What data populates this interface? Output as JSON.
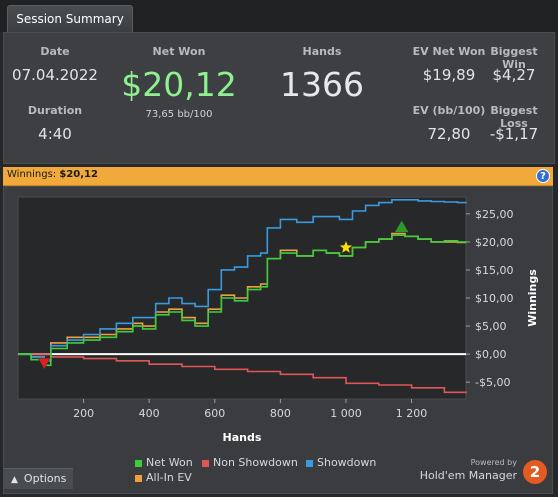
{
  "tab": {
    "title": "Session Summary"
  },
  "summary": {
    "date_label": "Date",
    "date_value": "07.04.2022",
    "duration_label": "Duration",
    "duration_value": "4:40",
    "net_won_label": "Net Won",
    "net_won_value": "$20,12",
    "net_won_sub": "73,65 bb/100",
    "hands_label": "Hands",
    "hands_value": "1366",
    "ev_net_won_label": "EV Net Won",
    "ev_net_won_value": "$19,89",
    "biggest_win_label": "Biggest Win",
    "biggest_win_value": "$4,27",
    "ev_bb100_label": "EV (bb/100)",
    "ev_bb100_value": "72,80",
    "biggest_loss_label": "Biggest Loss",
    "biggest_loss_value": "-$1,17"
  },
  "winnings_bar": {
    "label": "Winnings:",
    "value": "$20,12",
    "help": "?"
  },
  "options": {
    "label": "Options"
  },
  "brand": {
    "powered": "Powered by",
    "name": "Hold'em Manager",
    "logo": "2"
  },
  "colors": {
    "net_won": "#3ccf3c",
    "non_showdown": "#e05555",
    "showdown": "#3a9ae0",
    "allin_ev": "#f0a040",
    "accent_green": "#8ef08e"
  },
  "chart_data": {
    "type": "line",
    "xlabel": "Hands",
    "ylabel": "Winnings",
    "xlim": [
      0,
      1366
    ],
    "ylim": [
      -8,
      28
    ],
    "x_ticks": [
      200,
      400,
      600,
      800,
      1000,
      1200
    ],
    "x_tick_labels": [
      "200",
      "400",
      "600",
      "800",
      "1 000",
      "1 200"
    ],
    "y_ticks": [
      25,
      20,
      15,
      10,
      5,
      0,
      -5
    ],
    "y_tick_labels": [
      "$25,00",
      "$20,00",
      "$15,00",
      "$10,00",
      "$5,00",
      "$0,00",
      "-$5,00"
    ],
    "grid": false,
    "legend_position": "bottom",
    "series": [
      {
        "name": "Net Won",
        "color": "#3ccf3c",
        "x": [
          0,
          40,
          80,
          100,
          150,
          200,
          250,
          300,
          350,
          380,
          420,
          460,
          500,
          540,
          580,
          620,
          660,
          700,
          740,
          760,
          800,
          850,
          900,
          940,
          980,
          1020,
          1060,
          1100,
          1140,
          1180,
          1220,
          1260,
          1300,
          1340,
          1366
        ],
        "y": [
          0,
          -1,
          -2,
          1,
          2,
          2.5,
          3,
          4,
          5,
          4.5,
          7,
          7.5,
          6,
          5,
          7.5,
          10,
          9.5,
          11.5,
          12,
          17,
          18,
          17.5,
          18.5,
          18,
          17.5,
          19,
          20,
          20.5,
          21.2,
          21,
          20.5,
          20,
          20.2,
          20,
          20.12
        ]
      },
      {
        "name": "Non Showdown",
        "color": "#e05555",
        "x": [
          0,
          100,
          200,
          300,
          400,
          500,
          600,
          700,
          800,
          900,
          1000,
          1100,
          1200,
          1300,
          1366
        ],
        "y": [
          0,
          -0.5,
          -0.8,
          -1.2,
          -1.8,
          -2.2,
          -2.7,
          -3.1,
          -3.6,
          -4.2,
          -5.2,
          -5.5,
          -6.0,
          -6.8,
          -7.0
        ]
      },
      {
        "name": "Showdown",
        "color": "#3a9ae0",
        "x": [
          0,
          40,
          80,
          100,
          150,
          200,
          250,
          300,
          350,
          380,
          420,
          460,
          500,
          540,
          580,
          620,
          660,
          700,
          740,
          760,
          800,
          850,
          900,
          940,
          980,
          1020,
          1060,
          1100,
          1140,
          1180,
          1220,
          1260,
          1300,
          1340,
          1366
        ],
        "y": [
          0,
          -0.5,
          -1.2,
          1.5,
          2.5,
          3.5,
          4.5,
          5.5,
          6.5,
          6.5,
          9,
          10,
          9,
          8.5,
          11.5,
          15,
          15.5,
          17.5,
          18,
          22.5,
          24,
          23.5,
          24.5,
          24.5,
          24,
          25.5,
          26.5,
          27,
          27.5,
          27.5,
          27.3,
          27.2,
          27.1,
          27.0,
          27.12
        ]
      },
      {
        "name": "All-In EV",
        "color": "#f0a040",
        "x": [
          0,
          40,
          80,
          100,
          150,
          200,
          250,
          300,
          350,
          380,
          420,
          460,
          500,
          540,
          580,
          620,
          660,
          700,
          740,
          760,
          800,
          850,
          900,
          940,
          980,
          1020,
          1060,
          1100,
          1140,
          1180,
          1220,
          1260,
          1300,
          1340,
          1366
        ],
        "y": [
          0,
          -0.5,
          -1,
          2,
          3,
          3,
          3.5,
          4.5,
          5.5,
          5,
          7.5,
          8,
          6.5,
          5.5,
          8,
          10.5,
          10,
          12,
          12.5,
          17,
          18.5,
          17.5,
          18.5,
          18,
          17.5,
          19,
          20,
          20.5,
          21.5,
          21,
          20.5,
          20,
          20,
          19.9,
          19.89
        ]
      }
    ],
    "markers": [
      {
        "name": "Biggest Loss",
        "shape": "triangle-down",
        "color": "#e02020",
        "x": 80,
        "y": -1.6
      },
      {
        "name": "All-In",
        "shape": "star",
        "color": "#ffe000",
        "x": 1000,
        "y": 19
      },
      {
        "name": "Biggest Win",
        "shape": "triangle-up",
        "color": "#2a9a2a",
        "x": 1170,
        "y": 22.6
      }
    ]
  }
}
